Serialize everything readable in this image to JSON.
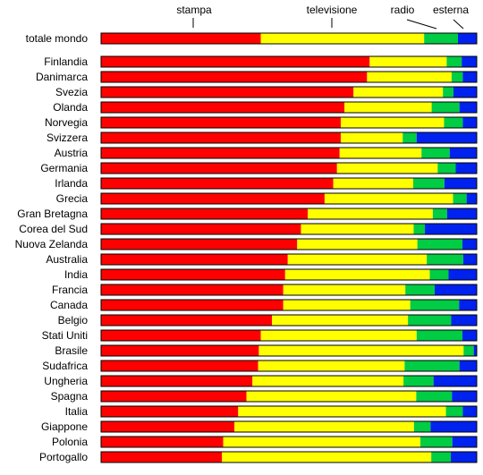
{
  "chart_data": {
    "type": "bar",
    "orientation": "horizontal",
    "stacked": true,
    "normalized": true,
    "legend_placement": "top",
    "grid": false,
    "xlim": [
      0,
      1
    ],
    "series": [
      {
        "name": "stampa",
        "color": "#ff0000"
      },
      {
        "name": "televisione",
        "color": "#ffff00"
      },
      {
        "name": "radio",
        "color": "#00cc44"
      },
      {
        "name": "esterna",
        "color": "#0022ee"
      }
    ],
    "categories": [
      "totale mondo",
      "Finlandia",
      "Danimarca",
      "Svezia",
      "Olanda",
      "Norvegia",
      "Svizzera",
      "Austria",
      "Germania",
      "Irlanda",
      "Grecia",
      "Gran Bretagna",
      "Corea del Sud",
      "Nuova Zelanda",
      "Australia",
      "India",
      "Francia",
      "Canada",
      "Belgio",
      "Stati Uniti",
      "Brasile",
      "Sudafrica",
      "Ungheria",
      "Spagna",
      "Italia",
      "Giappone",
      "Polonia",
      "Portogallo"
    ],
    "values": [
      [
        0.425,
        0.435,
        0.09,
        0.05
      ],
      [
        0.715,
        0.205,
        0.04,
        0.04
      ],
      [
        0.708,
        0.225,
        0.03,
        0.037
      ],
      [
        0.672,
        0.238,
        0.028,
        0.062
      ],
      [
        0.648,
        0.232,
        0.074,
        0.046
      ],
      [
        0.638,
        0.275,
        0.05,
        0.037
      ],
      [
        0.638,
        0.165,
        0.037,
        0.16
      ],
      [
        0.635,
        0.218,
        0.075,
        0.072
      ],
      [
        0.628,
        0.268,
        0.048,
        0.056
      ],
      [
        0.618,
        0.213,
        0.083,
        0.086
      ],
      [
        0.595,
        0.342,
        0.036,
        0.027
      ],
      [
        0.55,
        0.333,
        0.038,
        0.079
      ],
      [
        0.532,
        0.3,
        0.03,
        0.138
      ],
      [
        0.522,
        0.32,
        0.12,
        0.038
      ],
      [
        0.497,
        0.37,
        0.097,
        0.036
      ],
      [
        0.49,
        0.385,
        0.05,
        0.075
      ],
      [
        0.485,
        0.325,
        0.078,
        0.112
      ],
      [
        0.485,
        0.338,
        0.13,
        0.047
      ],
      [
        0.455,
        0.362,
        0.115,
        0.068
      ],
      [
        0.425,
        0.415,
        0.122,
        0.038
      ],
      [
        0.42,
        0.545,
        0.027,
        0.008
      ],
      [
        0.418,
        0.39,
        0.146,
        0.046
      ],
      [
        0.403,
        0.402,
        0.08,
        0.115
      ],
      [
        0.387,
        0.452,
        0.095,
        0.066
      ],
      [
        0.365,
        0.553,
        0.045,
        0.037
      ],
      [
        0.355,
        0.478,
        0.044,
        0.123
      ],
      [
        0.325,
        0.525,
        0.085,
        0.065
      ],
      [
        0.322,
        0.557,
        0.052,
        0.069
      ]
    ]
  }
}
